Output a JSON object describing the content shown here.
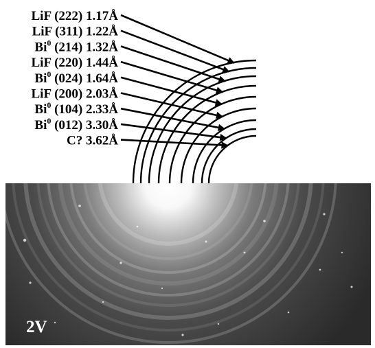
{
  "figure": {
    "panel_label": "2V",
    "reflections": [
      {
        "phase": "LiF",
        "sup": "",
        "hkl": "(222)",
        "d": "1.17Å"
      },
      {
        "phase": "LiF",
        "sup": "",
        "hkl": "(311)",
        "d": "1.22Å"
      },
      {
        "phase": "Bi",
        "sup": "0",
        "hkl": "(214)",
        "d": "1.32Å"
      },
      {
        "phase": "LiF",
        "sup": "",
        "hkl": "(220)",
        "d": "1.44Å"
      },
      {
        "phase": "Bi",
        "sup": "0",
        "hkl": "(024)",
        "d": "1.64Å"
      },
      {
        "phase": "LiF",
        "sup": "",
        "hkl": "(200)",
        "d": "2.03Å"
      },
      {
        "phase": "Bi",
        "sup": "0",
        "hkl": "(104)",
        "d": "2.33Å"
      },
      {
        "phase": "Bi",
        "sup": "0",
        "hkl": "(012)",
        "d": "3.30Å"
      },
      {
        "phase": "C?",
        "sup": "",
        "hkl": "",
        "d": "3.62Å"
      }
    ]
  }
}
